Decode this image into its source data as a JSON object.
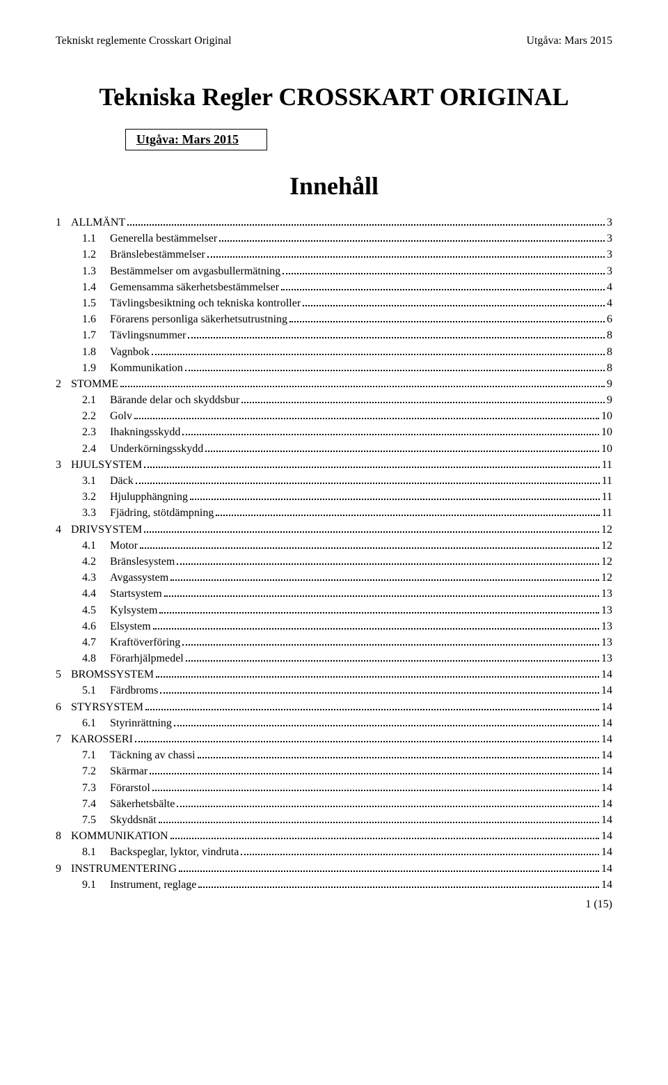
{
  "header": {
    "left": "Tekniskt reglemente Crosskart Original",
    "right": "Utgåva: Mars 2015"
  },
  "mainTitle": "Tekniska Regler CROSSKART ORIGINAL",
  "subtitle": "Utgåva: Mars 2015",
  "tocTitle": "Innehåll",
  "toc": [
    {
      "level": 1,
      "num": "1",
      "label": "ALLMÄNT",
      "page": "3"
    },
    {
      "level": 2,
      "num": "1.1",
      "label": "Generella bestämmelser",
      "page": "3"
    },
    {
      "level": 2,
      "num": "1.2",
      "label": "Bränslebestämmelser",
      "page": "3"
    },
    {
      "level": 2,
      "num": "1.3",
      "label": "Bestämmelser om avgasbullermätning",
      "page": "3"
    },
    {
      "level": 2,
      "num": "1.4",
      "label": "Gemensamma säkerhetsbestämmelser",
      "page": "4"
    },
    {
      "level": 2,
      "num": "1.5",
      "label": "Tävlingsbesiktning och tekniska kontroller",
      "page": "4"
    },
    {
      "level": 2,
      "num": "1.6",
      "label": "Förarens personliga säkerhetsutrustning",
      "page": "6"
    },
    {
      "level": 2,
      "num": "1.7",
      "label": "Tävlingsnummer",
      "page": "8"
    },
    {
      "level": 2,
      "num": "1.8",
      "label": "Vagnbok",
      "page": "8"
    },
    {
      "level": 2,
      "num": "1.9",
      "label": "Kommunikation",
      "page": "8"
    },
    {
      "level": 1,
      "num": "2",
      "label": "STOMME",
      "page": "9"
    },
    {
      "level": 2,
      "num": "2.1",
      "label": "Bärande delar och skyddsbur",
      "page": "9"
    },
    {
      "level": 2,
      "num": "2.2",
      "label": "Golv",
      "page": "10"
    },
    {
      "level": 2,
      "num": "2.3",
      "label": "Ihakningsskydd",
      "page": "10"
    },
    {
      "level": 2,
      "num": "2.4",
      "label": "Underkörningsskydd",
      "page": "10"
    },
    {
      "level": 1,
      "num": "3",
      "label": "HJULSYSTEM",
      "page": "11"
    },
    {
      "level": 2,
      "num": "3.1",
      "label": "Däck",
      "page": "11"
    },
    {
      "level": 2,
      "num": "3.2",
      "label": "Hjulupphängning",
      "page": "11"
    },
    {
      "level": 2,
      "num": "3.3",
      "label": "Fjädring, stötdämpning",
      "page": "11"
    },
    {
      "level": 1,
      "num": "4",
      "label": "DRIVSYSTEM",
      "page": "12"
    },
    {
      "level": 2,
      "num": "4.1",
      "label": "Motor",
      "page": "12"
    },
    {
      "level": 2,
      "num": "4.2",
      "label": "Bränslesystem",
      "page": "12"
    },
    {
      "level": 2,
      "num": "4.3",
      "label": "Avgassystem",
      "page": "12"
    },
    {
      "level": 2,
      "num": "4.4",
      "label": "Startsystem",
      "page": "13"
    },
    {
      "level": 2,
      "num": "4.5",
      "label": "Kylsystem",
      "page": "13"
    },
    {
      "level": 2,
      "num": "4.6",
      "label": "Elsystem",
      "page": "13"
    },
    {
      "level": 2,
      "num": "4.7",
      "label": "Kraftöverföring",
      "page": "13"
    },
    {
      "level": 2,
      "num": "4.8",
      "label": "Förarhjälpmedel",
      "page": "13"
    },
    {
      "level": 1,
      "num": "5",
      "label": "BROMSSYSTEM",
      "page": "14"
    },
    {
      "level": 2,
      "num": "5.1",
      "label": "Färdbroms",
      "page": "14"
    },
    {
      "level": 1,
      "num": "6",
      "label": "STYRSYSTEM",
      "page": "14"
    },
    {
      "level": 2,
      "num": "6.1",
      "label": "Styrinrättning",
      "page": "14"
    },
    {
      "level": 1,
      "num": "7",
      "label": "KAROSSERI",
      "page": "14"
    },
    {
      "level": 2,
      "num": "7.1",
      "label": "Täckning av chassi",
      "page": "14"
    },
    {
      "level": 2,
      "num": "7.2",
      "label": "Skärmar",
      "page": "14"
    },
    {
      "level": 2,
      "num": "7.3",
      "label": "Förarstol",
      "page": "14"
    },
    {
      "level": 2,
      "num": "7.4",
      "label": "Säkerhetsbälte",
      "page": "14"
    },
    {
      "level": 2,
      "num": "7.5",
      "label": "Skyddsnät",
      "page": "14"
    },
    {
      "level": 1,
      "num": "8",
      "label": "KOMMUNIKATION",
      "page": "14"
    },
    {
      "level": 2,
      "num": "8.1",
      "label": "Backspeglar, lyktor, vindruta",
      "page": "14"
    },
    {
      "level": 1,
      "num": "9",
      "label": "INSTRUMENTERING",
      "page": "14"
    },
    {
      "level": 2,
      "num": "9.1",
      "label": "Instrument, reglage",
      "page": "14"
    }
  ],
  "footer": "1 (15)"
}
